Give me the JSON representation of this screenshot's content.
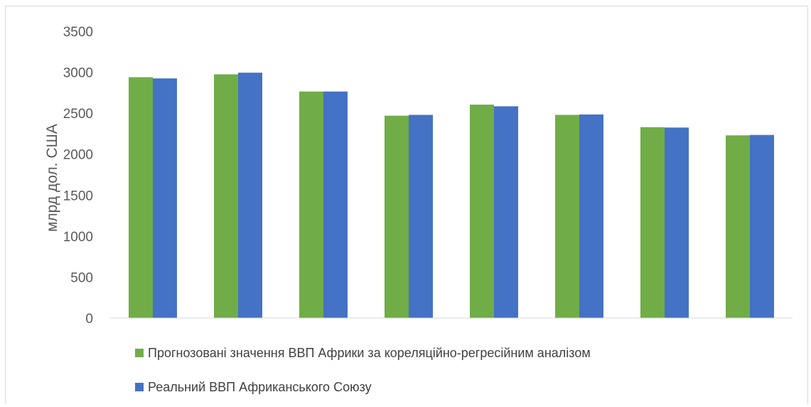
{
  "chart_data": {
    "type": "bar",
    "title": "",
    "xlabel": "",
    "ylabel": "млрд дол. США",
    "categories": [
      "",
      "",
      "",
      "",
      "",
      "",
      "",
      ""
    ],
    "ylim": [
      0,
      3500
    ],
    "yticks": [
      0,
      500,
      1000,
      1500,
      2000,
      2500,
      3000,
      3500
    ],
    "grid": false,
    "legend_position": "bottom",
    "series": [
      {
        "name": "Прогнозовані значення ВВП Африки за кореляційно-регресійним аналізом",
        "color": "#70ad47",
        "values": [
          2940,
          2975,
          2765,
          2470,
          2605,
          2480,
          2330,
          2230
        ]
      },
      {
        "name": "Реальний ВВП Африканського Союзу",
        "color": "#4472c4",
        "values": [
          2925,
          2995,
          2765,
          2480,
          2585,
          2485,
          2325,
          2235
        ]
      }
    ]
  }
}
